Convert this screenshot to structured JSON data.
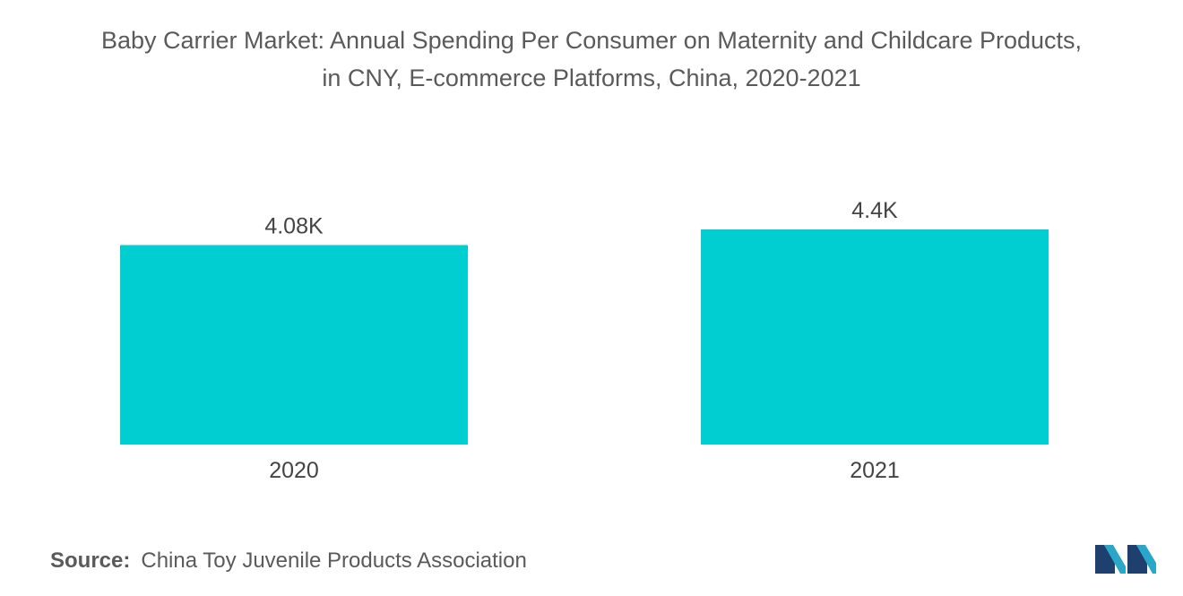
{
  "title_line1": "Baby Carrier Market: Annual Spending Per Consumer on Maternity and Childcare Products,",
  "title_line2": "in CNY, E-commerce Platforms, China, 2020-2021",
  "source_label": "Source:",
  "source_text": "China Toy Juvenile Products Association",
  "logo_icon": "mordor-intelligence-logo-icon",
  "chart_data": {
    "type": "bar",
    "title": "Baby Carrier Market: Annual Spending Per Consumer on Maternity and Childcare Products, in CNY, E-commerce Platforms, China, 2020-2021",
    "categories": [
      "2020",
      "2021"
    ],
    "values": [
      4080,
      4400
    ],
    "data_labels": [
      "4.08K",
      "4.4K"
    ],
    "xlabel": "",
    "ylabel": "",
    "ylim": [
      0,
      4600
    ],
    "grid": false,
    "legend": "none",
    "bar_color": "#00CED1"
  }
}
